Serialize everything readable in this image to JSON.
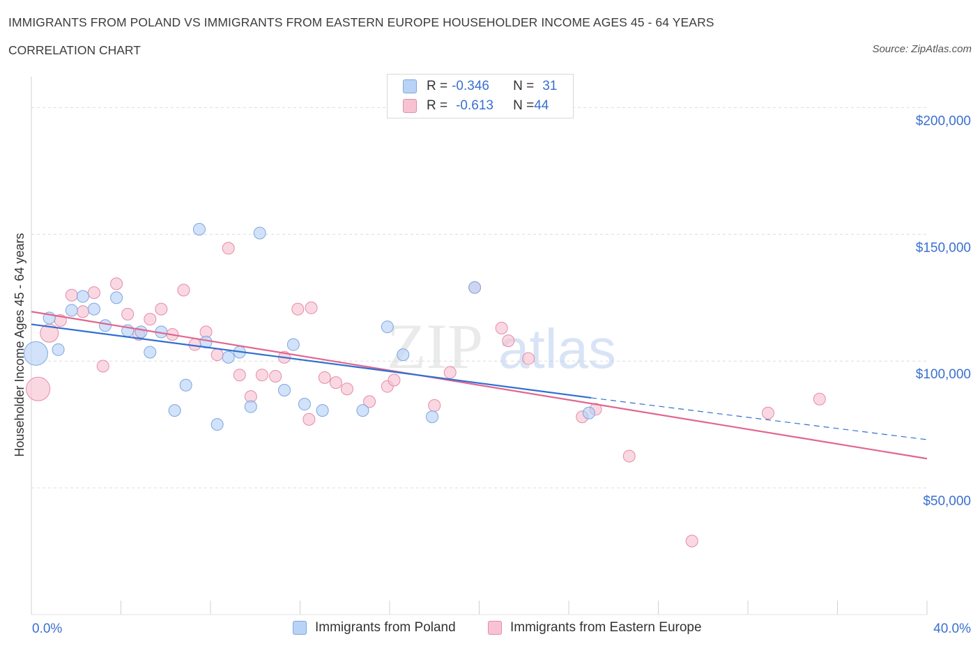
{
  "header": {
    "title": "IMMIGRANTS FROM POLAND VS IMMIGRANTS FROM EASTERN EUROPE HOUSEHOLDER INCOME AGES 45 - 64 YEARS",
    "subtitle": "CORRELATION CHART",
    "source": "Source: ZipAtlas.com"
  },
  "legend": {
    "poland": {
      "r_label": "R = ",
      "r_value": "-0.346",
      "n_label": "N = ",
      "n_value": "31"
    },
    "eastern": {
      "r_label": "R = ",
      "r_value": "-0.613",
      "n_label": "N = ",
      "n_value": "44"
    }
  },
  "colors": {
    "poland_fill": "#b9d3f7",
    "poland_stroke": "#7ba6e0",
    "poland_line": "#2f6fd1",
    "eastern_fill": "#f7c3d3",
    "eastern_stroke": "#e58aa8",
    "eastern_line": "#e0668f",
    "axis_label": "#3a6fd0",
    "grid": "#dcdcdc"
  },
  "watermark": "ZIPatlas",
  "chart_data": {
    "type": "scatter",
    "title": "IMMIGRANTS FROM POLAND VS IMMIGRANTS FROM EASTERN EUROPE HOUSEHOLDER INCOME AGES 45 - 64 YEARS",
    "xlabel": "",
    "ylabel": "Householder Income Ages 45 - 64 years",
    "xlim": [
      0,
      40
    ],
    "ylim": [
      0,
      210000
    ],
    "x_tick_labels": [
      "0.0%",
      "40.0%"
    ],
    "y_ticks": [
      50000,
      100000,
      150000,
      200000
    ],
    "y_tick_labels": [
      "$50,000",
      "$100,000",
      "$150,000",
      "$200,000"
    ],
    "grid": true,
    "legend_position": "top-center",
    "series": [
      {
        "name": "Immigrants from Poland",
        "points": [
          {
            "x": 0.2,
            "y": 103000,
            "big": 2
          },
          {
            "x": 0.8,
            "y": 117000
          },
          {
            "x": 1.2,
            "y": 104500
          },
          {
            "x": 1.8,
            "y": 120000
          },
          {
            "x": 2.3,
            "y": 125500
          },
          {
            "x": 2.8,
            "y": 120500
          },
          {
            "x": 3.3,
            "y": 114000
          },
          {
            "x": 3.8,
            "y": 125000
          },
          {
            "x": 4.3,
            "y": 112000
          },
          {
            "x": 4.9,
            "y": 111500
          },
          {
            "x": 5.3,
            "y": 103500
          },
          {
            "x": 5.8,
            "y": 111500
          },
          {
            "x": 6.4,
            "y": 80500
          },
          {
            "x": 6.9,
            "y": 90500
          },
          {
            "x": 7.5,
            "y": 152000
          },
          {
            "x": 7.8,
            "y": 107500
          },
          {
            "x": 8.3,
            "y": 75000
          },
          {
            "x": 8.8,
            "y": 101500
          },
          {
            "x": 9.3,
            "y": 103500
          },
          {
            "x": 9.8,
            "y": 82000
          },
          {
            "x": 10.2,
            "y": 150500
          },
          {
            "x": 11.3,
            "y": 88500
          },
          {
            "x": 11.7,
            "y": 106500
          },
          {
            "x": 12.2,
            "y": 83000
          },
          {
            "x": 13.0,
            "y": 80500
          },
          {
            "x": 14.8,
            "y": 80500
          },
          {
            "x": 15.9,
            "y": 113500
          },
          {
            "x": 16.6,
            "y": 102500
          },
          {
            "x": 17.9,
            "y": 78000
          },
          {
            "x": 19.8,
            "y": 129000
          },
          {
            "x": 24.9,
            "y": 79500
          }
        ]
      },
      {
        "name": "Immigrants from Eastern Europe",
        "points": [
          {
            "x": 0.3,
            "y": 89000,
            "big": 2
          },
          {
            "x": 0.8,
            "y": 111000,
            "big": 1
          },
          {
            "x": 1.3,
            "y": 116000
          },
          {
            "x": 1.8,
            "y": 126000
          },
          {
            "x": 2.3,
            "y": 119500
          },
          {
            "x": 2.8,
            "y": 127000
          },
          {
            "x": 3.2,
            "y": 98000
          },
          {
            "x": 3.8,
            "y": 130500
          },
          {
            "x": 4.3,
            "y": 118500
          },
          {
            "x": 4.8,
            "y": 110500
          },
          {
            "x": 5.3,
            "y": 116500
          },
          {
            "x": 5.8,
            "y": 120500
          },
          {
            "x": 6.3,
            "y": 110500
          },
          {
            "x": 6.8,
            "y": 128000
          },
          {
            "x": 7.3,
            "y": 106500
          },
          {
            "x": 7.8,
            "y": 111500
          },
          {
            "x": 8.3,
            "y": 102500
          },
          {
            "x": 8.8,
            "y": 144500
          },
          {
            "x": 9.3,
            "y": 94500
          },
          {
            "x": 9.8,
            "y": 86000
          },
          {
            "x": 10.3,
            "y": 94500
          },
          {
            "x": 10.9,
            "y": 94000
          },
          {
            "x": 11.3,
            "y": 101500
          },
          {
            "x": 11.9,
            "y": 120500
          },
          {
            "x": 12.4,
            "y": 77000
          },
          {
            "x": 12.5,
            "y": 121000
          },
          {
            "x": 13.1,
            "y": 93500
          },
          {
            "x": 13.6,
            "y": 91500
          },
          {
            "x": 14.1,
            "y": 89000
          },
          {
            "x": 15.1,
            "y": 84000
          },
          {
            "x": 15.9,
            "y": 90000
          },
          {
            "x": 16.2,
            "y": 92500
          },
          {
            "x": 18.0,
            "y": 82500
          },
          {
            "x": 18.7,
            "y": 95500
          },
          {
            "x": 21.0,
            "y": 113000
          },
          {
            "x": 21.3,
            "y": 108000
          },
          {
            "x": 22.2,
            "y": 101000
          },
          {
            "x": 24.6,
            "y": 78000
          },
          {
            "x": 25.2,
            "y": 81000
          },
          {
            "x": 26.7,
            "y": 62500
          },
          {
            "x": 29.5,
            "y": 29000
          },
          {
            "x": 32.9,
            "y": 79500
          },
          {
            "x": 35.2,
            "y": 85000
          },
          {
            "x": 19.8,
            "y": 129000
          }
        ]
      }
    ],
    "trendlines": [
      {
        "series": "Immigrants from Poland",
        "solid": [
          [
            0,
            114500
          ],
          [
            25,
            85500
          ]
        ],
        "dashed": [
          [
            25,
            85500
          ],
          [
            40,
            69000
          ]
        ]
      },
      {
        "series": "Immigrants from Eastern Europe",
        "solid": [
          [
            0,
            119500
          ],
          [
            40,
            61500
          ]
        ]
      }
    ]
  },
  "bottom_legend": {
    "poland_label": "Immigrants from Poland",
    "eastern_label": "Immigrants from Eastern Europe"
  }
}
